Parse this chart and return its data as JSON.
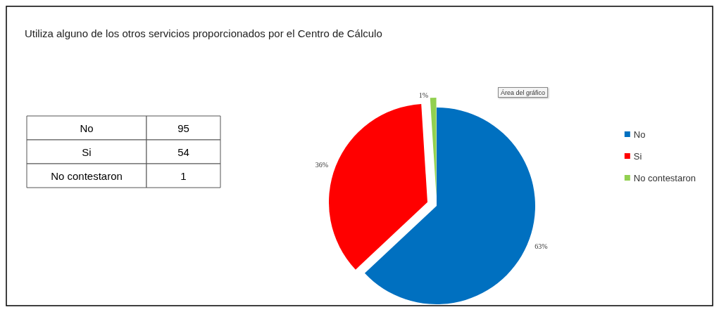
{
  "chart_data": {
    "type": "pie",
    "title": "Utiliza alguno de los otros servicios proporcionados por el Centro de Cálculo",
    "categories": [
      "No",
      "Si",
      "No contestaron"
    ],
    "values": [
      63,
      36,
      1
    ],
    "colors": [
      "#0070c0",
      "#ff0000",
      "#92d050"
    ],
    "value_labels": [
      "63%",
      "36%",
      "1%"
    ],
    "legend": "right",
    "annotations": [
      "Área del gráfico",
      "95",
      "54",
      "1"
    ]
  }
}
